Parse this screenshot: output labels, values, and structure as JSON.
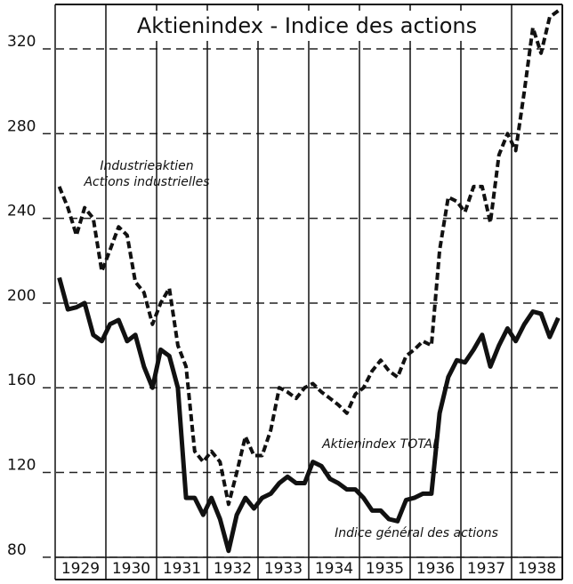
{
  "chart_data": {
    "type": "line",
    "title": "Aktienindex - Indice des actions",
    "annotations": [
      "Industrieaktien",
      "Actions industrielles",
      "Aktienindex TOTAL",
      "Indice général des actions"
    ],
    "x": [
      1929.08,
      1929.25,
      1929.42,
      1929.58,
      1929.75,
      1929.92,
      1930.08,
      1930.25,
      1930.42,
      1930.58,
      1930.75,
      1930.92,
      1931.08,
      1931.25,
      1931.42,
      1931.58,
      1931.75,
      1931.92,
      1932.08,
      1932.25,
      1932.42,
      1932.58,
      1932.75,
      1932.92,
      1933.08,
      1933.25,
      1933.42,
      1933.58,
      1933.75,
      1933.92,
      1934.08,
      1934.25,
      1934.42,
      1934.58,
      1934.75,
      1934.92,
      1935.08,
      1935.25,
      1935.42,
      1935.58,
      1935.75,
      1935.92,
      1936.08,
      1936.25,
      1936.42,
      1936.58,
      1936.75,
      1936.92,
      1937.08,
      1937.25,
      1937.42,
      1937.58,
      1937.75,
      1937.92,
      1938.08,
      1938.25,
      1938.42,
      1938.58,
      1938.75,
      1938.92
    ],
    "series": [
      {
        "name": "Industrieaktien",
        "color": "#111111",
        "linestyle": "dashed",
        "values": [
          255,
          245,
          232,
          245,
          240,
          215,
          225,
          236,
          232,
          210,
          205,
          190,
          200,
          207,
          180,
          170,
          130,
          125,
          130,
          125,
          105,
          120,
          137,
          128,
          128,
          140,
          160,
          158,
          155,
          160,
          162,
          158,
          155,
          152,
          148,
          157,
          160,
          168,
          173,
          168,
          165,
          175,
          178,
          182,
          180,
          225,
          250,
          248,
          243,
          255,
          255,
          238,
          270,
          280,
          272,
          300,
          330,
          318,
          335,
          338
        ]
      },
      {
        "name": "Aktienindex TOTAL",
        "color": "#111111",
        "linestyle": "solid",
        "values": [
          212,
          197,
          198,
          200,
          185,
          182,
          190,
          192,
          182,
          185,
          170,
          160,
          178,
          175,
          160,
          108,
          108,
          100,
          108,
          98,
          83,
          100,
          108,
          103,
          108,
          110,
          115,
          118,
          115,
          115,
          125,
          123,
          117,
          115,
          112,
          112,
          108,
          102,
          102,
          98,
          97,
          107,
          108,
          110,
          110,
          148,
          165,
          173,
          172,
          178,
          185,
          170,
          180,
          188,
          182,
          190,
          196,
          195,
          184,
          193
        ]
      }
    ],
    "xlim": [
      1929,
      1939
    ],
    "xticks": [
      1929,
      1930,
      1931,
      1932,
      1933,
      1934,
      1935,
      1936,
      1937,
      1938
    ],
    "ylim": [
      77,
      341
    ],
    "yticks": [
      80,
      120,
      160,
      200,
      240,
      280,
      320
    ],
    "grid": true
  }
}
